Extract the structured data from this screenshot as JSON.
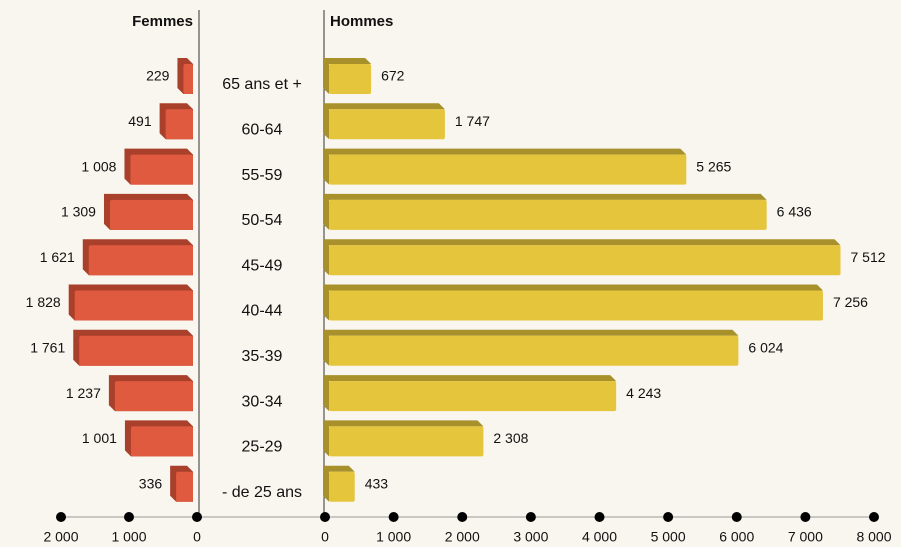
{
  "chart_data": {
    "type": "pyramid",
    "categories": [
      "65 ans et +",
      "60-64",
      "55-59",
      "50-54",
      "45-49",
      "40-44",
      "35-39",
      "30-34",
      "25-29",
      "- de 25 ans"
    ],
    "series": [
      {
        "name": "Femmes",
        "color": "#e05a3f",
        "side_color": "#a9402b",
        "values": [
          229,
          491,
          1008,
          1309,
          1621,
          1828,
          1761,
          1237,
          1001,
          336
        ],
        "value_labels": [
          "229",
          "491",
          "1 008",
          "1 309",
          "1 621",
          "1 828",
          "1 761",
          "1 237",
          "1 001",
          "336"
        ],
        "xlim": [
          0,
          2000
        ],
        "xticks": [
          {
            "value": 2000,
            "label": "2 000"
          },
          {
            "value": 1000,
            "label": "1 000"
          },
          0
        ]
      },
      {
        "name": "Hommes",
        "color": "#e4c53c",
        "side_color": "#a8912a",
        "values": [
          672,
          1747,
          5265,
          6436,
          7512,
          7256,
          6024,
          4243,
          2308,
          433
        ],
        "value_labels": [
          "672",
          "1 747",
          "5 265",
          "6 436",
          "7 512",
          "7 256",
          "6 024",
          "4 243",
          "2 308",
          "433"
        ],
        "xlim": [
          0,
          8000
        ],
        "xticks": [
          0,
          {
            "value": 1000,
            "label": "1 000"
          },
          {
            "value": 2000,
            "label": "2 000"
          },
          {
            "value": 3000,
            "label": "3 000"
          },
          {
            "value": 4000,
            "label": "4 000"
          },
          {
            "value": 5000,
            "label": "5 000"
          },
          {
            "value": 6000,
            "label": "6 000"
          },
          {
            "value": 7000,
            "label": "7 000"
          },
          {
            "value": 8000,
            "label": "8 000"
          }
        ]
      }
    ]
  }
}
